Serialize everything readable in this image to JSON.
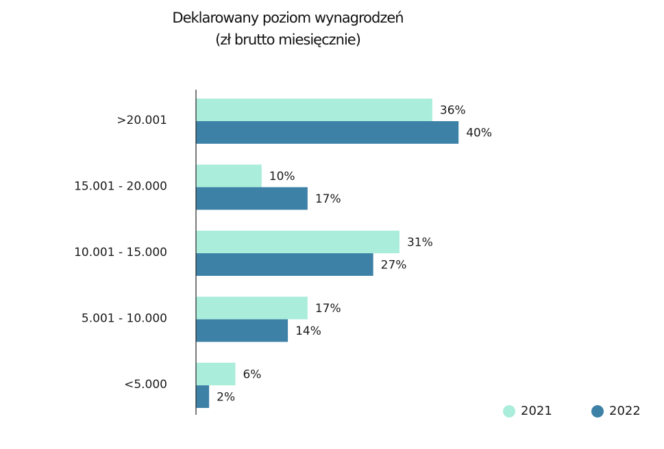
{
  "chart_data": {
    "type": "bar",
    "orientation": "horizontal",
    "title": "Deklarowany poziom wynagrodzeń",
    "subtitle": "(zł brutto miesięcznie)",
    "categories": [
      ">20.001",
      "15.001 - 20.000",
      "10.001 - 15.000",
      "5.001 - 10.000",
      "<5.000"
    ],
    "series": [
      {
        "name": "2021",
        "color": "#abeddb",
        "values": [
          36,
          10,
          31,
          17,
          6
        ],
        "labels": [
          "36%",
          "10%",
          "31%",
          "17%",
          "6%"
        ]
      },
      {
        "name": "2022",
        "color": "#3d81a7",
        "values": [
          40,
          17,
          27,
          14,
          2
        ],
        "labels": [
          "40%",
          "17%",
          "27%",
          "14%",
          "2%"
        ]
      }
    ],
    "value_unit": "%",
    "xlim": [
      0,
      100
    ],
    "grid": false,
    "legend_position": "bottom-right"
  }
}
